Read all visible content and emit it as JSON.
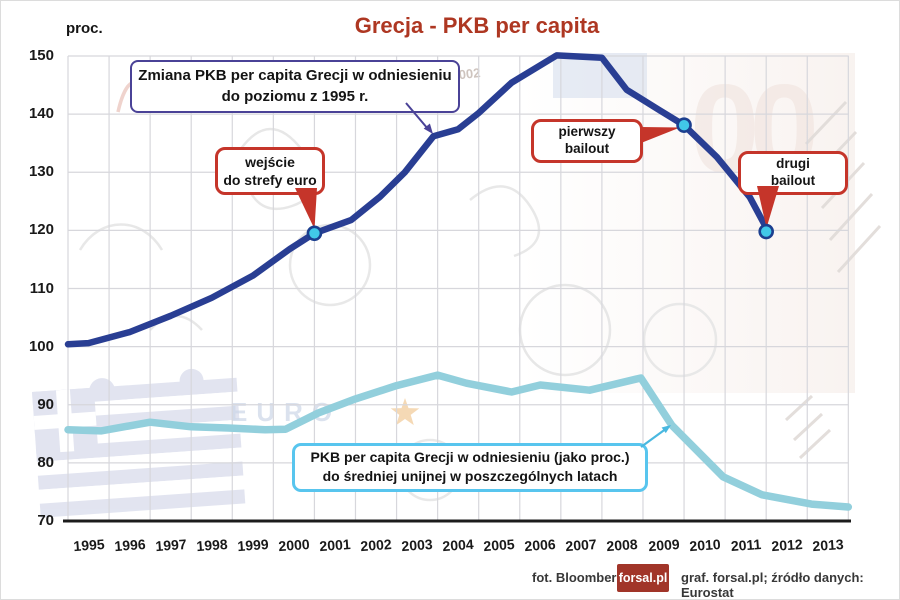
{
  "title": "Grecja - PKB per capita",
  "y_unit": "proc.",
  "colors": {
    "title_red": "#ae3722",
    "navy_border": "#4a4297",
    "red_callout": "#c5352a",
    "cyan_border": "#58c5ee",
    "dark_line": "#293e93",
    "light_line": "#92cfdc",
    "marker_fill": "#41c8e8",
    "marker_stroke": "#1c3f8f",
    "grid": "#d7d7dc",
    "axis": "#1c1c1c",
    "logo_bg": "#a13529",
    "footer_text": "#383838"
  },
  "chart_data": {
    "type": "line",
    "title": "Grecja - PKB per capita",
    "ylabel": "proc.",
    "ylim": [
      70,
      150
    ],
    "yticks": [
      150,
      140,
      130,
      120,
      110,
      100,
      90,
      80,
      70
    ],
    "grid": true,
    "categories": [
      "1995",
      "1996",
      "1997",
      "1998",
      "1999",
      "2000",
      "2001",
      "2002",
      "2003",
      "2004",
      "2005",
      "2006",
      "2007",
      "2008",
      "2009",
      "2010",
      "2011",
      "2012",
      "2013"
    ],
    "series": [
      {
        "name": "Zmiana PKB per capita Grecji w odniesieniu do poziomu z 1995 r.",
        "color": "#293e93",
        "width": 6.5,
        "values": [
          100.6,
          102.2,
          105.3,
          108.6,
          112,
          115.8,
          119.5,
          123.5,
          128.7,
          136.2,
          140.2,
          146,
          150.1,
          149.7,
          142.8,
          138.1,
          132,
          119.8,
          null
        ],
        "points": [
          [
            1995.0,
            100.4
          ],
          [
            1995.5,
            100.6
          ],
          [
            1996.5,
            102.5
          ],
          [
            1997.5,
            105.3
          ],
          [
            1998.5,
            108.4
          ],
          [
            1999.5,
            112.2
          ],
          [
            2000.4,
            116.8
          ],
          [
            2001.0,
            119.5
          ],
          [
            2001.9,
            121.8
          ],
          [
            2002.6,
            125.8
          ],
          [
            2003.2,
            130.0
          ],
          [
            2003.9,
            136.2
          ],
          [
            2004.5,
            137.4
          ],
          [
            2005.0,
            140.2
          ],
          [
            2005.8,
            145.4
          ],
          [
            2006.9,
            150.1
          ],
          [
            2008.0,
            149.7
          ],
          [
            2008.6,
            144.2
          ],
          [
            2009.4,
            140.7
          ],
          [
            2010.0,
            138.1
          ],
          [
            2010.8,
            132.6
          ],
          [
            2011.6,
            125.7
          ],
          [
            2012.05,
            119.8
          ]
        ]
      },
      {
        "name": "PKB per capita Grecji w odniesieniu (jako proc.) do średniej unijnej w poszczególnych latach",
        "color": "#92cfdc",
        "width": 7.5,
        "values": [
          85.7,
          85.6,
          87.0,
          86.2,
          85.9,
          85.8,
          88.4,
          91.0,
          93.3,
          95.1,
          92.9,
          93.2,
          92.7,
          93.2,
          94.5,
          84.2,
          77.3,
          74.2,
          73.1
        ],
        "points": [
          [
            1995.0,
            85.7
          ],
          [
            1995.8,
            85.5
          ],
          [
            1997.0,
            87.0
          ],
          [
            1998.0,
            86.2
          ],
          [
            1998.9,
            86.0
          ],
          [
            1999.8,
            85.7
          ],
          [
            2000.3,
            85.8
          ],
          [
            2001.1,
            88.6
          ],
          [
            2002.0,
            91.0
          ],
          [
            2003.0,
            93.3
          ],
          [
            2004.0,
            95.1
          ],
          [
            2004.7,
            93.7
          ],
          [
            2005.8,
            92.2
          ],
          [
            2006.5,
            93.4
          ],
          [
            2007.7,
            92.5
          ],
          [
            2008.95,
            94.6
          ],
          [
            2009.7,
            86.5
          ],
          [
            2010.95,
            77.6
          ],
          [
            2011.9,
            74.5
          ],
          [
            2013.1,
            72.9
          ],
          [
            2014.0,
            72.4
          ]
        ]
      }
    ],
    "markers": [
      {
        "label": "wejście do strefy euro",
        "year": 2001,
        "value": 119.5
      },
      {
        "label": "pierwszy bailout",
        "year": 2010,
        "value": 138.1
      },
      {
        "label": "drugi bailout",
        "year": 2012,
        "value": 119.8
      }
    ],
    "legend_position": "annotations-on-chart"
  },
  "annotations": {
    "series1_label": {
      "line1": "Zmiana PKB per capita Grecji w odniesieniu",
      "line2": "do poziomu z 1995 r."
    },
    "series2_label": {
      "line1": "PKB per capita Grecji w odniesieniu (jako proc.)",
      "line2": "do średniej unijnej w poszczególnych latach"
    },
    "callout_euro": {
      "line1": "wejście",
      "line2": "do strefy euro"
    },
    "callout_bailout1": {
      "line1": "pierwszy",
      "line2": "bailout"
    },
    "callout_bailout2": {
      "line1": "drugi",
      "line2": "bailout"
    }
  },
  "watermark_texts": {
    "euro": "EURO",
    "year_note": "2002",
    "zeros": "00"
  },
  "footer": {
    "credit_photo": "fot. Bloomberg",
    "logo": "forsal.pl",
    "credit_graphic": "graf. forsal.pl;  źródło danych: Eurostat"
  }
}
